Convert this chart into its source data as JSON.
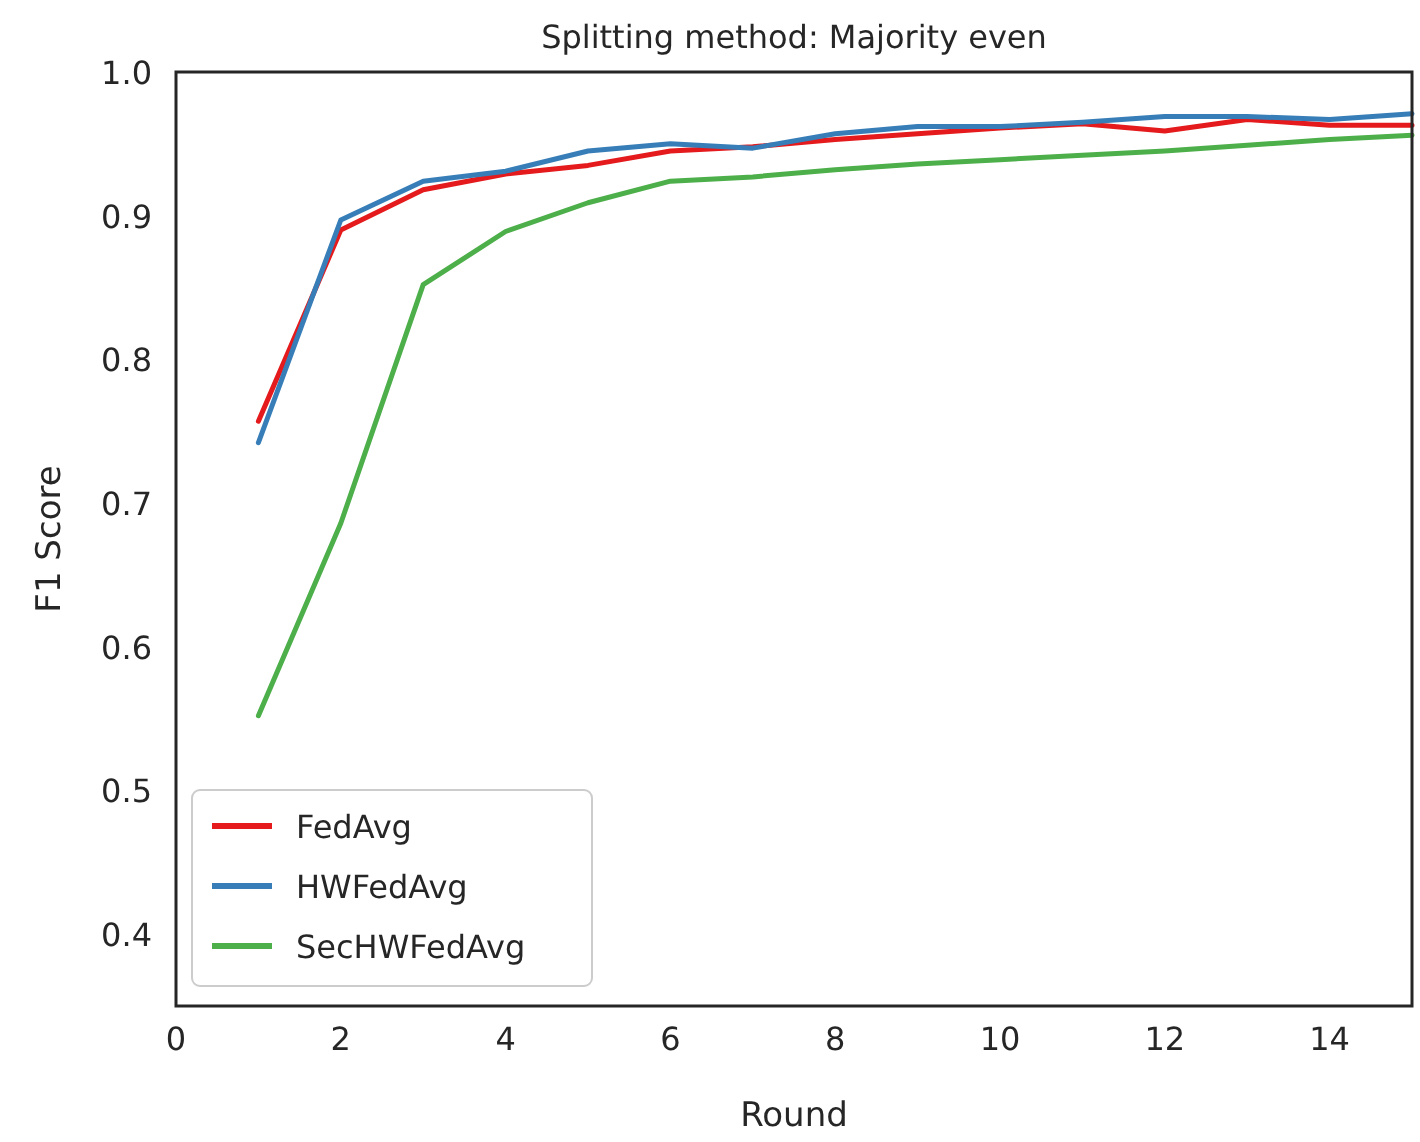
{
  "chart_data": {
    "type": "line",
    "title": "Splitting method: Majority even",
    "xlabel": "Round",
    "ylabel": "F1 Score",
    "x": [
      1,
      2,
      3,
      4,
      5,
      6,
      7,
      8,
      9,
      10,
      11,
      12,
      13,
      14,
      15
    ],
    "series": [
      {
        "name": "FedAvg",
        "color": "#e41a1c",
        "values": [
          0.757,
          0.89,
          0.918,
          0.929,
          0.935,
          0.945,
          0.948,
          0.953,
          0.957,
          0.961,
          0.964,
          0.959,
          0.967,
          0.963,
          0.963
        ]
      },
      {
        "name": "HWFedAvg",
        "color": "#377eb8",
        "values": [
          0.742,
          0.897,
          0.924,
          0.931,
          0.945,
          0.95,
          0.947,
          0.957,
          0.962,
          0.962,
          0.965,
          0.969,
          0.969,
          0.967,
          0.971
        ]
      },
      {
        "name": "SecHWFedAvg",
        "color": "#4daf4a",
        "values": [
          0.552,
          0.686,
          0.852,
          0.889,
          0.909,
          0.924,
          0.927,
          0.932,
          0.936,
          0.939,
          0.942,
          0.945,
          0.949,
          0.953,
          0.956
        ]
      }
    ],
    "xlim": [
      0,
      15
    ],
    "ylim": [
      0.35,
      1.0
    ],
    "xticks": [
      0,
      2,
      4,
      6,
      8,
      10,
      12,
      14
    ],
    "yticks": [
      0.4,
      0.5,
      0.6,
      0.7,
      0.8,
      0.9,
      {
        "value": 1,
        "label": "1.0"
      }
    ],
    "grid": false,
    "legend": "bottom left",
    "marker": "none",
    "line_style": "solid"
  }
}
